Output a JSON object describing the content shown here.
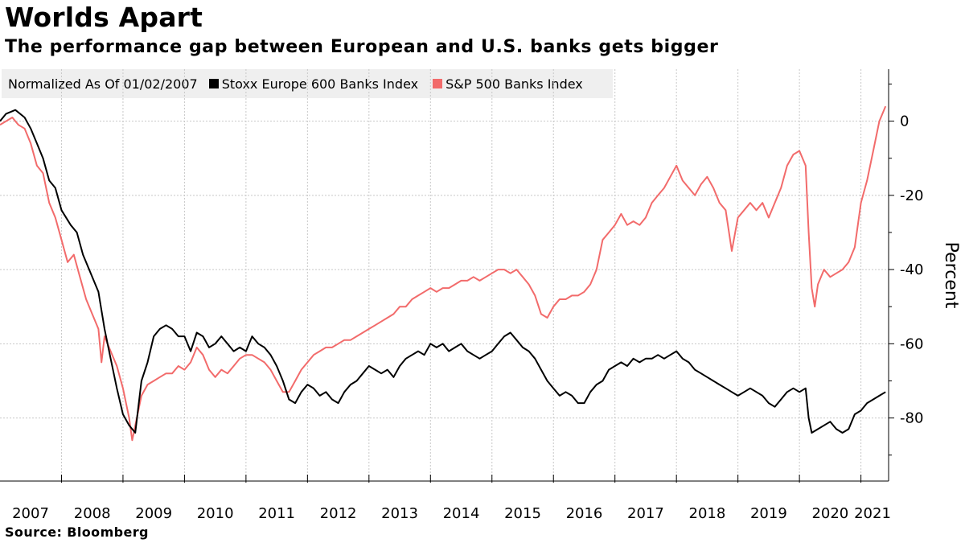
{
  "chart_data": {
    "type": "line",
    "title": "Worlds Apart",
    "subtitle": "The performance gap between European and U.S. banks gets bigger",
    "legend_prefix": "Normalized As Of 01/02/2007",
    "legend_placement": "top-left",
    "ylabel": "Percent",
    "ylim": [
      -97,
      14
    ],
    "yticks": [
      0,
      -20,
      -40,
      -60,
      -80
    ],
    "ytick_labels": [
      "0",
      "-20",
      "-40",
      "-60",
      "-80"
    ],
    "xlim": [
      2007.0,
      2021.45
    ],
    "x_tick_labels": [
      "2007",
      "2008",
      "2009",
      "2010",
      "2011",
      "2012",
      "2013",
      "2014",
      "2015",
      "2016",
      "2017",
      "2018",
      "2019",
      "2020",
      "2021"
    ],
    "grid": true,
    "series": [
      {
        "name": "Stoxx Europe 600 Banks Index",
        "color": "#000000",
        "points": [
          [
            2007.0,
            0
          ],
          [
            2007.1,
            2
          ],
          [
            2007.25,
            3
          ],
          [
            2007.4,
            1
          ],
          [
            2007.5,
            -2
          ],
          [
            2007.6,
            -6
          ],
          [
            2007.7,
            -10
          ],
          [
            2007.8,
            -16
          ],
          [
            2007.9,
            -18
          ],
          [
            2008.0,
            -24
          ],
          [
            2008.15,
            -28
          ],
          [
            2008.25,
            -30
          ],
          [
            2008.35,
            -36
          ],
          [
            2008.5,
            -42
          ],
          [
            2008.6,
            -46
          ],
          [
            2008.7,
            -56
          ],
          [
            2008.8,
            -64
          ],
          [
            2008.9,
            -72
          ],
          [
            2009.0,
            -79
          ],
          [
            2009.1,
            -82
          ],
          [
            2009.2,
            -84
          ],
          [
            2009.3,
            -70
          ],
          [
            2009.4,
            -65
          ],
          [
            2009.5,
            -58
          ],
          [
            2009.6,
            -56
          ],
          [
            2009.7,
            -55
          ],
          [
            2009.8,
            -56
          ],
          [
            2009.9,
            -58
          ],
          [
            2010.0,
            -58
          ],
          [
            2010.1,
            -62
          ],
          [
            2010.2,
            -57
          ],
          [
            2010.3,
            -58
          ],
          [
            2010.4,
            -61
          ],
          [
            2010.5,
            -60
          ],
          [
            2010.6,
            -58
          ],
          [
            2010.7,
            -60
          ],
          [
            2010.8,
            -62
          ],
          [
            2010.9,
            -61
          ],
          [
            2011.0,
            -62
          ],
          [
            2011.1,
            -58
          ],
          [
            2011.2,
            -60
          ],
          [
            2011.3,
            -61
          ],
          [
            2011.4,
            -63
          ],
          [
            2011.5,
            -66
          ],
          [
            2011.6,
            -70
          ],
          [
            2011.7,
            -75
          ],
          [
            2011.8,
            -76
          ],
          [
            2011.9,
            -73
          ],
          [
            2012.0,
            -71
          ],
          [
            2012.1,
            -72
          ],
          [
            2012.2,
            -74
          ],
          [
            2012.3,
            -73
          ],
          [
            2012.4,
            -75
          ],
          [
            2012.5,
            -76
          ],
          [
            2012.6,
            -73
          ],
          [
            2012.7,
            -71
          ],
          [
            2012.8,
            -70
          ],
          [
            2012.9,
            -68
          ],
          [
            2013.0,
            -66
          ],
          [
            2013.1,
            -67
          ],
          [
            2013.2,
            -68
          ],
          [
            2013.3,
            -67
          ],
          [
            2013.4,
            -69
          ],
          [
            2013.5,
            -66
          ],
          [
            2013.6,
            -64
          ],
          [
            2013.7,
            -63
          ],
          [
            2013.8,
            -62
          ],
          [
            2013.9,
            -63
          ],
          [
            2014.0,
            -60
          ],
          [
            2014.1,
            -61
          ],
          [
            2014.2,
            -60
          ],
          [
            2014.3,
            -62
          ],
          [
            2014.4,
            -61
          ],
          [
            2014.5,
            -60
          ],
          [
            2014.6,
            -62
          ],
          [
            2014.7,
            -63
          ],
          [
            2014.8,
            -64
          ],
          [
            2014.9,
            -63
          ],
          [
            2015.0,
            -62
          ],
          [
            2015.1,
            -60
          ],
          [
            2015.2,
            -58
          ],
          [
            2015.3,
            -57
          ],
          [
            2015.4,
            -59
          ],
          [
            2015.5,
            -61
          ],
          [
            2015.6,
            -62
          ],
          [
            2015.7,
            -64
          ],
          [
            2015.8,
            -67
          ],
          [
            2015.9,
            -70
          ],
          [
            2016.0,
            -72
          ],
          [
            2016.1,
            -74
          ],
          [
            2016.2,
            -73
          ],
          [
            2016.3,
            -74
          ],
          [
            2016.4,
            -76
          ],
          [
            2016.5,
            -76
          ],
          [
            2016.6,
            -73
          ],
          [
            2016.7,
            -71
          ],
          [
            2016.8,
            -70
          ],
          [
            2016.9,
            -67
          ],
          [
            2017.0,
            -66
          ],
          [
            2017.1,
            -65
          ],
          [
            2017.2,
            -66
          ],
          [
            2017.3,
            -64
          ],
          [
            2017.4,
            -65
          ],
          [
            2017.5,
            -64
          ],
          [
            2017.6,
            -64
          ],
          [
            2017.7,
            -63
          ],
          [
            2017.8,
            -64
          ],
          [
            2017.9,
            -63
          ],
          [
            2018.0,
            -62
          ],
          [
            2018.1,
            -64
          ],
          [
            2018.2,
            -65
          ],
          [
            2018.3,
            -67
          ],
          [
            2018.4,
            -68
          ],
          [
            2018.5,
            -69
          ],
          [
            2018.6,
            -70
          ],
          [
            2018.7,
            -71
          ],
          [
            2018.8,
            -72
          ],
          [
            2018.9,
            -73
          ],
          [
            2019.0,
            -74
          ],
          [
            2019.1,
            -73
          ],
          [
            2019.2,
            -72
          ],
          [
            2019.3,
            -73
          ],
          [
            2019.4,
            -74
          ],
          [
            2019.5,
            -76
          ],
          [
            2019.6,
            -77
          ],
          [
            2019.7,
            -75
          ],
          [
            2019.8,
            -73
          ],
          [
            2019.9,
            -72
          ],
          [
            2020.0,
            -73
          ],
          [
            2020.1,
            -72
          ],
          [
            2020.15,
            -80
          ],
          [
            2020.2,
            -84
          ],
          [
            2020.3,
            -83
          ],
          [
            2020.4,
            -82
          ],
          [
            2020.5,
            -81
          ],
          [
            2020.6,
            -83
          ],
          [
            2020.7,
            -84
          ],
          [
            2020.8,
            -83
          ],
          [
            2020.9,
            -79
          ],
          [
            2021.0,
            -78
          ],
          [
            2021.1,
            -76
          ],
          [
            2021.2,
            -75
          ],
          [
            2021.3,
            -74
          ],
          [
            2021.4,
            -73
          ]
        ]
      },
      {
        "name": "S&P 500 Banks Index",
        "color": "#f26b6b",
        "points": [
          [
            2007.0,
            -1
          ],
          [
            2007.1,
            0
          ],
          [
            2007.2,
            1
          ],
          [
            2007.3,
            -1
          ],
          [
            2007.4,
            -2
          ],
          [
            2007.5,
            -6
          ],
          [
            2007.6,
            -12
          ],
          [
            2007.7,
            -14
          ],
          [
            2007.8,
            -22
          ],
          [
            2007.9,
            -26
          ],
          [
            2008.0,
            -32
          ],
          [
            2008.1,
            -38
          ],
          [
            2008.2,
            -36
          ],
          [
            2008.3,
            -42
          ],
          [
            2008.4,
            -48
          ],
          [
            2008.5,
            -52
          ],
          [
            2008.6,
            -56
          ],
          [
            2008.65,
            -65
          ],
          [
            2008.7,
            -58
          ],
          [
            2008.8,
            -62
          ],
          [
            2008.9,
            -66
          ],
          [
            2009.0,
            -72
          ],
          [
            2009.1,
            -80
          ],
          [
            2009.15,
            -86
          ],
          [
            2009.2,
            -82
          ],
          [
            2009.3,
            -74
          ],
          [
            2009.4,
            -71
          ],
          [
            2009.5,
            -70
          ],
          [
            2009.6,
            -69
          ],
          [
            2009.7,
            -68
          ],
          [
            2009.8,
            -68
          ],
          [
            2009.9,
            -66
          ],
          [
            2010.0,
            -67
          ],
          [
            2010.1,
            -65
          ],
          [
            2010.2,
            -61
          ],
          [
            2010.3,
            -63
          ],
          [
            2010.4,
            -67
          ],
          [
            2010.5,
            -69
          ],
          [
            2010.6,
            -67
          ],
          [
            2010.7,
            -68
          ],
          [
            2010.8,
            -66
          ],
          [
            2010.9,
            -64
          ],
          [
            2011.0,
            -63
          ],
          [
            2011.1,
            -63
          ],
          [
            2011.2,
            -64
          ],
          [
            2011.3,
            -65
          ],
          [
            2011.4,
            -67
          ],
          [
            2011.5,
            -70
          ],
          [
            2011.6,
            -73
          ],
          [
            2011.7,
            -73
          ],
          [
            2011.8,
            -70
          ],
          [
            2011.9,
            -67
          ],
          [
            2012.0,
            -65
          ],
          [
            2012.1,
            -63
          ],
          [
            2012.2,
            -62
          ],
          [
            2012.3,
            -61
          ],
          [
            2012.4,
            -61
          ],
          [
            2012.5,
            -60
          ],
          [
            2012.6,
            -59
          ],
          [
            2012.7,
            -59
          ],
          [
            2012.8,
            -58
          ],
          [
            2012.9,
            -57
          ],
          [
            2013.0,
            -56
          ],
          [
            2013.1,
            -55
          ],
          [
            2013.2,
            -54
          ],
          [
            2013.3,
            -53
          ],
          [
            2013.4,
            -52
          ],
          [
            2013.5,
            -50
          ],
          [
            2013.6,
            -50
          ],
          [
            2013.7,
            -48
          ],
          [
            2013.8,
            -47
          ],
          [
            2013.9,
            -46
          ],
          [
            2014.0,
            -45
          ],
          [
            2014.1,
            -46
          ],
          [
            2014.2,
            -45
          ],
          [
            2014.3,
            -45
          ],
          [
            2014.4,
            -44
          ],
          [
            2014.5,
            -43
          ],
          [
            2014.6,
            -43
          ],
          [
            2014.7,
            -42
          ],
          [
            2014.8,
            -43
          ],
          [
            2014.9,
            -42
          ],
          [
            2015.0,
            -41
          ],
          [
            2015.1,
            -40
          ],
          [
            2015.2,
            -40
          ],
          [
            2015.3,
            -41
          ],
          [
            2015.4,
            -40
          ],
          [
            2015.5,
            -42
          ],
          [
            2015.6,
            -44
          ],
          [
            2015.7,
            -47
          ],
          [
            2015.8,
            -52
          ],
          [
            2015.9,
            -53
          ],
          [
            2016.0,
            -50
          ],
          [
            2016.1,
            -48
          ],
          [
            2016.2,
            -48
          ],
          [
            2016.3,
            -47
          ],
          [
            2016.4,
            -47
          ],
          [
            2016.5,
            -46
          ],
          [
            2016.6,
            -44
          ],
          [
            2016.7,
            -40
          ],
          [
            2016.8,
            -32
          ],
          [
            2016.9,
            -30
          ],
          [
            2017.0,
            -28
          ],
          [
            2017.1,
            -25
          ],
          [
            2017.2,
            -28
          ],
          [
            2017.3,
            -27
          ],
          [
            2017.4,
            -28
          ],
          [
            2017.5,
            -26
          ],
          [
            2017.6,
            -22
          ],
          [
            2017.7,
            -20
          ],
          [
            2017.8,
            -18
          ],
          [
            2017.9,
            -15
          ],
          [
            2018.0,
            -12
          ],
          [
            2018.1,
            -16
          ],
          [
            2018.2,
            -18
          ],
          [
            2018.3,
            -20
          ],
          [
            2018.4,
            -17
          ],
          [
            2018.5,
            -15
          ],
          [
            2018.6,
            -18
          ],
          [
            2018.7,
            -22
          ],
          [
            2018.8,
            -24
          ],
          [
            2018.9,
            -35
          ],
          [
            2019.0,
            -26
          ],
          [
            2019.1,
            -24
          ],
          [
            2019.2,
            -22
          ],
          [
            2019.3,
            -24
          ],
          [
            2019.4,
            -22
          ],
          [
            2019.5,
            -26
          ],
          [
            2019.6,
            -22
          ],
          [
            2019.7,
            -18
          ],
          [
            2019.8,
            -12
          ],
          [
            2019.9,
            -9
          ],
          [
            2020.0,
            -8
          ],
          [
            2020.1,
            -12
          ],
          [
            2020.15,
            -30
          ],
          [
            2020.2,
            -45
          ],
          [
            2020.25,
            -50
          ],
          [
            2020.3,
            -44
          ],
          [
            2020.4,
            -40
          ],
          [
            2020.5,
            -42
          ],
          [
            2020.6,
            -41
          ],
          [
            2020.7,
            -40
          ],
          [
            2020.8,
            -38
          ],
          [
            2020.9,
            -34
          ],
          [
            2021.0,
            -22
          ],
          [
            2021.1,
            -16
          ],
          [
            2021.2,
            -8
          ],
          [
            2021.3,
            0
          ],
          [
            2021.4,
            4
          ]
        ]
      }
    ]
  },
  "source": "Source:  Bloomberg"
}
